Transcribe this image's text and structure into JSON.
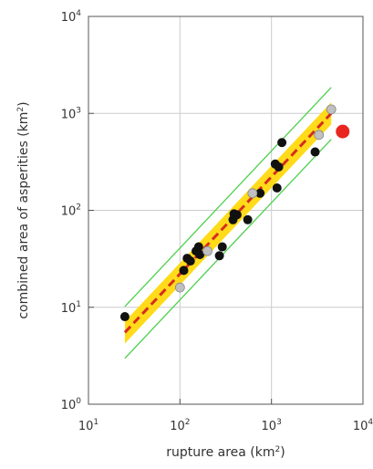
{
  "chart_data": {
    "type": "scatter",
    "xlabel": "rupture area (km²)",
    "ylabel": "combined area of asperities (km²)",
    "xscale": "log",
    "yscale": "log",
    "xlim": [
      10,
      10000
    ],
    "ylim": [
      1,
      10000
    ],
    "x_ticks": [
      {
        "value": 10,
        "base": "10",
        "exp": "1"
      },
      {
        "value": 100,
        "base": "10",
        "exp": "2"
      },
      {
        "value": 1000,
        "base": "10",
        "exp": "3"
      },
      {
        "value": 10000,
        "base": "10",
        "exp": "4"
      }
    ],
    "y_ticks": [
      {
        "value": 1,
        "base": "10",
        "exp": "0"
      },
      {
        "value": 10,
        "base": "10",
        "exp": "1"
      },
      {
        "value": 100,
        "base": "10",
        "exp": "2"
      },
      {
        "value": 1000,
        "base": "10",
        "exp": "3"
      },
      {
        "value": 10000,
        "base": "10",
        "exp": "4"
      }
    ],
    "grid": true,
    "regression": {
      "x_range": [
        25,
        4500
      ],
      "fit_start": 5.5,
      "fit_end": 1000,
      "band_factor": 1.3,
      "outer_factor": 1.85
    },
    "series": [
      {
        "color": "#111111",
        "points": [
          [
            25,
            8
          ],
          [
            110,
            24
          ],
          [
            120,
            32
          ],
          [
            130,
            30
          ],
          [
            150,
            38
          ],
          [
            160,
            42
          ],
          [
            165,
            35
          ],
          [
            270,
            34
          ],
          [
            290,
            42
          ],
          [
            380,
            80
          ],
          [
            390,
            92
          ],
          [
            420,
            90
          ],
          [
            550,
            80
          ],
          [
            750,
            150
          ],
          [
            1100,
            300
          ],
          [
            1150,
            170
          ],
          [
            1200,
            280
          ],
          [
            1300,
            500
          ],
          [
            3000,
            400
          ]
        ]
      },
      {
        "color": "#c0c0c0",
        "points": [
          [
            100,
            16
          ],
          [
            200,
            38
          ],
          [
            620,
            150
          ],
          [
            3300,
            600
          ],
          [
            4500,
            1100
          ]
        ]
      },
      {
        "color": "#e8261f",
        "points": [
          [
            6000,
            650
          ]
        ]
      }
    ],
    "colors": {
      "band": "#ffd700",
      "fit_line": "#d62d20",
      "outer_lines": "#4cd04c",
      "grid": "#cccccc",
      "axes": "#555555"
    }
  }
}
